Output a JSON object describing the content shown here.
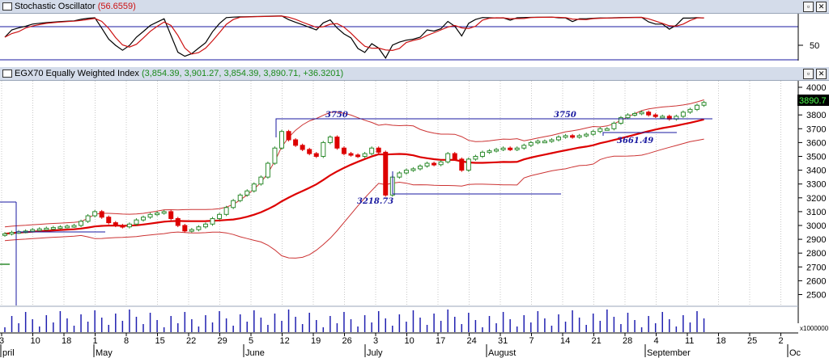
{
  "stoch": {
    "name": "Stochastic Oscillator",
    "value": "(56.6559)",
    "tick_label": "50"
  },
  "main": {
    "name": "EGX70 Equally Weighted Index",
    "values": "(3,854.39, 3,901.27, 3,854.39, 3,890.71, +36.3201)",
    "last_price": "3890.7"
  },
  "volume_unit": "x1000000",
  "colors": {
    "stoch_k": "#000000",
    "stoch_d": "#cc1111",
    "band": "#cc3333",
    "ma": "#dd0000",
    "up_candle": "#2e8b2e",
    "down_candle": "#dd0000",
    "volume": "#2020b0",
    "annotation": "#1a1aa0",
    "panel_title_bg": "#d4dcea"
  },
  "annotations": [
    "3750",
    "3750",
    "3218.73",
    "3661.49"
  ],
  "chart_data": {
    "type": "line",
    "ylim": [
      2400,
      4000
    ],
    "yticks": [
      2500,
      2600,
      2700,
      2800,
      2900,
      3000,
      3100,
      3200,
      3300,
      3400,
      3500,
      3600,
      3700,
      3800,
      3900,
      4000
    ],
    "xticks": [
      "3",
      "10",
      "18",
      "1",
      "8",
      "15",
      "22",
      "29",
      "5",
      "12",
      "19",
      "26",
      "3",
      "10",
      "17",
      "24",
      "31",
      "7",
      "14",
      "21",
      "28",
      "4",
      "11",
      "18",
      "25",
      "2"
    ],
    "months": [
      "pril",
      "May",
      "June",
      "July",
      "August",
      "September",
      "Oc"
    ],
    "close": [
      2940,
      2950,
      2955,
      2960,
      2970,
      2975,
      2980,
      2985,
      2990,
      2995,
      3000,
      3030,
      3070,
      3100,
      3060,
      3020,
      3000,
      2990,
      3010,
      3040,
      3060,
      3080,
      3090,
      3100,
      3050,
      3000,
      2960,
      2970,
      2990,
      3010,
      3050,
      3080,
      3130,
      3180,
      3220,
      3250,
      3300,
      3350,
      3450,
      3560,
      3680,
      3620,
      3580,
      3550,
      3520,
      3500,
      3600,
      3640,
      3560,
      3520,
      3510,
      3500,
      3520,
      3560,
      3530,
      3220,
      3350,
      3380,
      3400,
      3410,
      3430,
      3450,
      3440,
      3460,
      3520,
      3480,
      3400,
      3480,
      3500,
      3530,
      3540,
      3550,
      3560,
      3550,
      3560,
      3580,
      3600,
      3610,
      3610,
      3620,
      3640,
      3650,
      3640,
      3650,
      3660,
      3680,
      3700,
      3700,
      3740,
      3780,
      3800,
      3810,
      3820,
      3800,
      3790,
      3790,
      3770,
      3790,
      3820,
      3840,
      3870,
      3890
    ],
    "stoch_ylim": [
      0,
      100
    ],
    "stoch_level": 80
  }
}
